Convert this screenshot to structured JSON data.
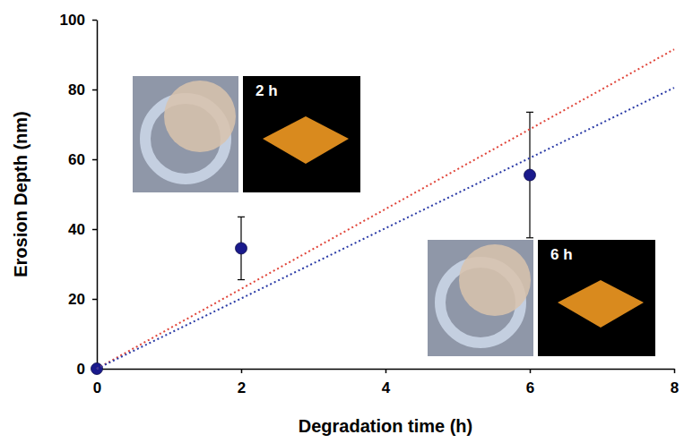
{
  "chart_data": {
    "type": "scatter",
    "x_label": "Degradation time (h)",
    "y_label": "Erosion Depth (nm)",
    "xlim": [
      0,
      8
    ],
    "xticks": [
      0,
      2,
      4,
      6,
      8
    ],
    "ylim": [
      0,
      100
    ],
    "yticks": [
      0,
      20,
      40,
      60,
      80,
      100
    ],
    "grid": false,
    "series": [
      {
        "type": "scatter",
        "x": [
          0,
          2,
          6
        ],
        "values": [
          0,
          34.5,
          55.5
        ],
        "errors": [
          null,
          9,
          18
        ],
        "color": "#1a1a8c",
        "marker": "circle"
      },
      {
        "type": "line",
        "x": [
          0,
          8
        ],
        "values": [
          0,
          91.5
        ],
        "color": "#e0453a",
        "line_style": "dotted"
      },
      {
        "type": "line",
        "x": [
          0,
          8
        ],
        "values": [
          0,
          80.5
        ],
        "color": "#2a3aa6",
        "line_style": "dotted"
      }
    ],
    "annotations": [
      "2 h",
      "6 h"
    ]
  }
}
